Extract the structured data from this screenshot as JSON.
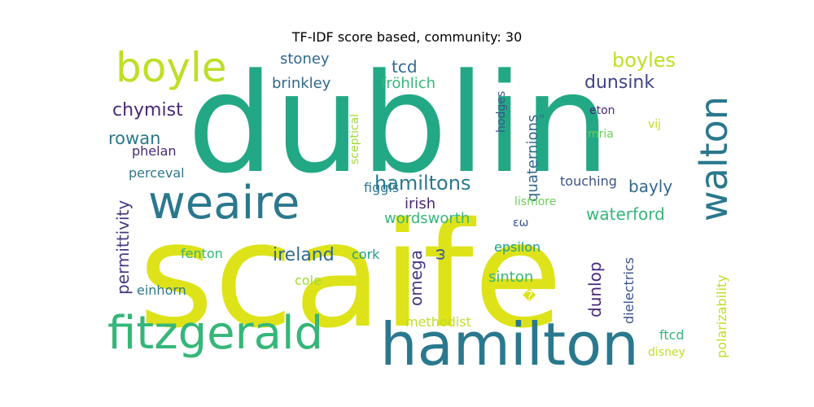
{
  "title": "TF-IDF score based, community: 30",
  "words": [
    {
      "text": "dublin",
      "color": "#22a884"
    },
    {
      "text": "scaife",
      "color": "#dde318"
    },
    {
      "text": "weaire",
      "color": "#2a788e"
    },
    {
      "text": "hamilton",
      "color": "#2a788e"
    },
    {
      "text": "fitzgerald",
      "color": "#35b779"
    },
    {
      "text": "boyle",
      "color": "#bddf26"
    },
    {
      "text": "walton",
      "color": "#2a788e"
    },
    {
      "text": "hamiltons",
      "color": "#2a788e"
    },
    {
      "text": "boyles",
      "color": "#bddf26"
    },
    {
      "text": "dunsink",
      "color": "#414487"
    },
    {
      "text": "tcd",
      "color": "#31688e"
    },
    {
      "text": "stoney",
      "color": "#31688e"
    },
    {
      "text": "brinkley",
      "color": "#31688e"
    },
    {
      "text": "fröhlich",
      "color": "#35b779"
    },
    {
      "text": "chymist",
      "color": "#482878"
    },
    {
      "text": "rowan",
      "color": "#2a788e"
    },
    {
      "text": "phelan",
      "color": "#482878"
    },
    {
      "text": "perceval",
      "color": "#2a788e"
    },
    {
      "text": "permittivity",
      "color": "#443983"
    },
    {
      "text": "sceptical",
      "color": "#a0da39"
    },
    {
      "text": "quaternions",
      "color": "#31688e"
    },
    {
      "text": "hodges",
      "color": "#3b528b"
    },
    {
      "text": "eton",
      "color": "#482878"
    },
    {
      "text": "mria",
      "color": "#6ece58"
    },
    {
      "text": "vij",
      "color": "#bddf26"
    },
    {
      "text": "touching",
      "color": "#3b528b"
    },
    {
      "text": "bayly",
      "color": "#31688e"
    },
    {
      "text": "figgis",
      "color": "#2a788e"
    },
    {
      "text": "irish",
      "color": "#482878"
    },
    {
      "text": "lismore",
      "color": "#6ece58"
    },
    {
      "text": "wordsworth",
      "color": "#35b779"
    },
    {
      "text": "εω",
      "color": "#3b528b"
    },
    {
      "text": "waterford",
      "color": "#35b779"
    },
    {
      "text": "omega",
      "color": "#443983"
    },
    {
      "text": "ω",
      "color": "#3b528b"
    },
    {
      "text": "ireland",
      "color": "#31688e"
    },
    {
      "text": "cork",
      "color": "#1f9e89"
    },
    {
      "text": "fenton",
      "color": "#35b779"
    },
    {
      "text": "epsilon",
      "color": "#1f9e89"
    },
    {
      "text": "dunlop",
      "color": "#482878"
    },
    {
      "text": "dielectrics",
      "color": "#3b528b"
    },
    {
      "text": "polarizability",
      "color": "#bddf26"
    },
    {
      "text": "sinton",
      "color": "#35b779"
    },
    {
      "text": "cole",
      "color": "#a0da39"
    },
    {
      "text": "einhorn",
      "color": "#2a788e"
    },
    {
      "text": "methodist",
      "color": "#bddf26"
    },
    {
      "text": "ftcd",
      "color": "#35b779"
    },
    {
      "text": "disney",
      "color": "#bddf26"
    },
    {
      "text": "\"",
      "color": "#2a788e"
    },
    {
      "text": "�",
      "color": "#dde318"
    }
  ]
}
